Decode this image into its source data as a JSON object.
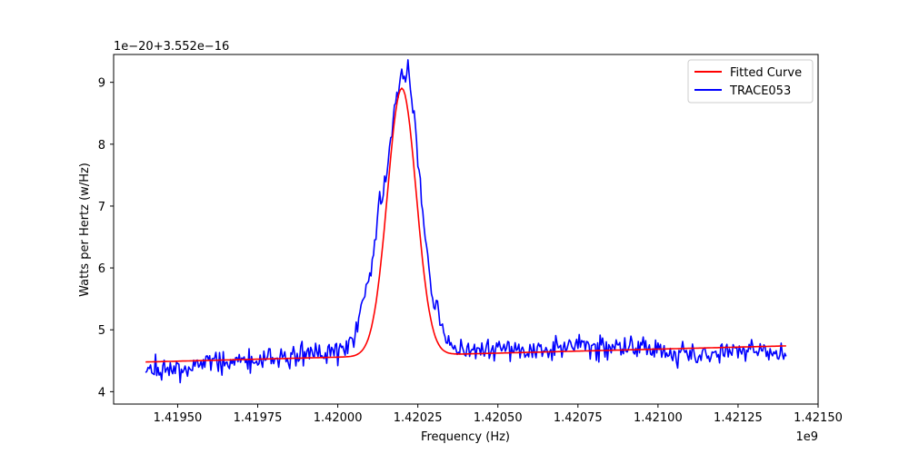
{
  "chart_data": {
    "type": "line",
    "xlabel": "Frequency (Hz)",
    "ylabel": "Watts per Hertz (w/Hz)",
    "x_offset_label": "1e9",
    "y_offset_label": "1e−20+3.552e−16",
    "xlim": [
      1.4193,
      1.4215
    ],
    "ylim": [
      3.8,
      9.45
    ],
    "xticks": [
      1.4195,
      1.41975,
      1.42,
      1.42025,
      1.4205,
      1.42075,
      1.421,
      1.42125,
      1.4215
    ],
    "xtick_labels": [
      "1.41950",
      "1.41975",
      "1.42000",
      "1.42025",
      "1.42050",
      "1.42075",
      "1.42100",
      "1.42125",
      "1.42150"
    ],
    "yticks": [
      4,
      5,
      6,
      7,
      8,
      9
    ],
    "ytick_labels": [
      "4",
      "5",
      "6",
      "7",
      "8",
      "9"
    ],
    "grid": false,
    "legend_position": "top-right",
    "series": [
      {
        "name": "Fitted Curve",
        "color": "#ff0000",
        "kind": "gaussian-plus-linear",
        "x_range": [
          1.4194,
          1.4214
        ],
        "baseline_start": 4.48,
        "baseline_end": 4.74,
        "peak_center": 1.4202,
        "peak_amplitude": 4.32,
        "peak_sigma": 4.5e-05
      },
      {
        "name": "TRACE053",
        "color": "#0000ff",
        "kind": "measured",
        "x": [
          1.4194,
          1.4195,
          1.4196,
          1.4197,
          1.4198,
          1.4199,
          1.42,
          1.42005,
          1.4201,
          1.42013,
          1.42016,
          1.42018,
          1.4202,
          1.42022,
          1.42024,
          1.42026,
          1.42028,
          1.4203,
          1.42033,
          1.42036,
          1.4204,
          1.4205,
          1.4206,
          1.4207,
          1.4208,
          1.4209,
          1.421,
          1.4211,
          1.4212,
          1.4213,
          1.4214
        ],
        "y": [
          4.4,
          4.35,
          4.45,
          4.5,
          4.55,
          4.6,
          4.65,
          4.8,
          5.9,
          7.0,
          7.9,
          8.7,
          9.05,
          9.15,
          8.5,
          7.2,
          6.2,
          5.5,
          4.9,
          4.7,
          4.65,
          4.7,
          4.65,
          4.75,
          4.7,
          4.75,
          4.7,
          4.6,
          4.65,
          4.7,
          4.55
        ],
        "noise_amplitude": 0.12
      }
    ]
  }
}
